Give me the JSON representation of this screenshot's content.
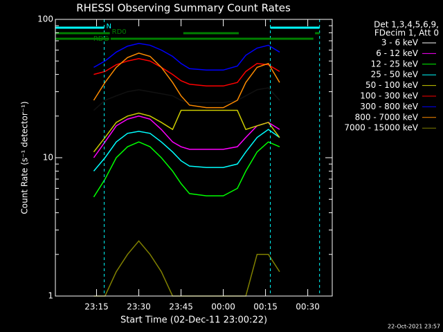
{
  "chart_data": {
    "type": "line",
    "title": "RHESSI Observing Summary Count Rates",
    "x_label": "Start Time (02-Dec-11 23:00:22)",
    "y_label": "Count Rate (s⁻¹ detector⁻¹)",
    "legend_header": [
      "Det 1,3,4,5,6,9,",
      "FDecim 1, Att 0"
    ],
    "footer": "22-Oct-2021 23:57",
    "log_y": true,
    "xlim": [
      0.37,
      98.7
    ],
    "ylim": [
      1,
      100
    ],
    "yticks": [
      1,
      10,
      100
    ],
    "xticks": [
      {
        "value": 15,
        "label": "23:15"
      },
      {
        "value": 30,
        "label": "23:30"
      },
      {
        "value": 45,
        "label": "23:45"
      },
      {
        "value": 60,
        "label": "00:00"
      },
      {
        "value": 75,
        "label": "00:15"
      },
      {
        "value": 90,
        "label": "00:30"
      }
    ],
    "x": [
      14,
      18,
      22,
      26,
      30,
      34,
      38,
      42,
      45,
      48,
      54,
      60,
      65,
      68,
      72,
      76,
      80
    ],
    "series": [
      {
        "name": "3 - 6 keV",
        "color": "#000000",
        "values": [
          22,
          26,
          28,
          30,
          31,
          30,
          29,
          28,
          26,
          25,
          25,
          25,
          26,
          28,
          31,
          32,
          26
        ]
      },
      {
        "name": "6 - 12 keV",
        "color": "#ff00ff",
        "values": [
          10,
          13,
          17,
          19,
          20,
          19,
          16,
          13,
          12,
          11.5,
          11.5,
          11.5,
          12,
          14,
          17,
          18,
          16
        ]
      },
      {
        "name": "12 - 25 keV",
        "color": "#00ff00",
        "values": [
          5.2,
          7,
          10,
          12,
          13,
          12,
          10,
          8,
          6.5,
          5.5,
          5.3,
          5.3,
          6,
          8,
          11,
          13,
          12
        ]
      },
      {
        "name": "25 - 50 keV",
        "color": "#00ffff",
        "values": [
          8,
          10,
          13,
          15,
          15.5,
          15,
          13,
          11,
          9.5,
          8.7,
          8.5,
          8.5,
          9,
          11,
          14,
          16,
          14
        ]
      },
      {
        "name": "50 - 100 keV",
        "color": "#cccc00",
        "values": [
          11,
          14,
          18,
          20,
          21,
          20,
          18,
          16,
          22,
          22,
          22,
          22,
          22,
          16,
          17,
          18,
          14
        ]
      },
      {
        "name": "100 - 300 keV",
        "color": "#ff0000",
        "values": [
          40,
          42,
          47,
          50,
          52,
          50,
          45,
          40,
          36,
          34,
          33,
          33,
          35,
          42,
          48,
          47,
          42
        ]
      },
      {
        "name": "300 - 800 keV",
        "color": "#0000ff",
        "values": [
          45,
          50,
          58,
          64,
          67,
          65,
          60,
          54,
          48,
          44,
          43,
          43,
          46,
          55,
          62,
          65,
          58
        ]
      },
      {
        "name": "800 - 7000 keV",
        "color": "#ff8c00",
        "values": [
          26,
          35,
          45,
          53,
          57,
          54,
          45,
          35,
          28,
          24,
          23,
          23,
          26,
          35,
          45,
          48,
          35
        ]
      },
      {
        "name": "7000 - 15000 keV",
        "color": "#808000",
        "values": [
          1,
          1,
          1.5,
          2,
          2.5,
          2,
          1.5,
          1,
          1,
          1,
          1,
          1,
          1,
          1,
          2,
          2,
          1.5
        ]
      }
    ],
    "annotations": [
      {
        "label": "N",
        "color": "#00ffff",
        "spans": [
          [
            0.37,
            17.7
          ],
          [
            76.7,
            94.2
          ]
        ]
      },
      {
        "label": "RD0",
        "color": "#008000",
        "spans": [
          [
            0.37,
            19.7
          ],
          [
            45.8,
            65.5
          ],
          [
            92.6,
            94.2
          ]
        ]
      },
      {
        "label": "RDG",
        "color": "#008000",
        "spans": [
          [
            0.37,
            19.5
          ],
          [
            20,
            92
          ]
        ]
      }
    ]
  }
}
